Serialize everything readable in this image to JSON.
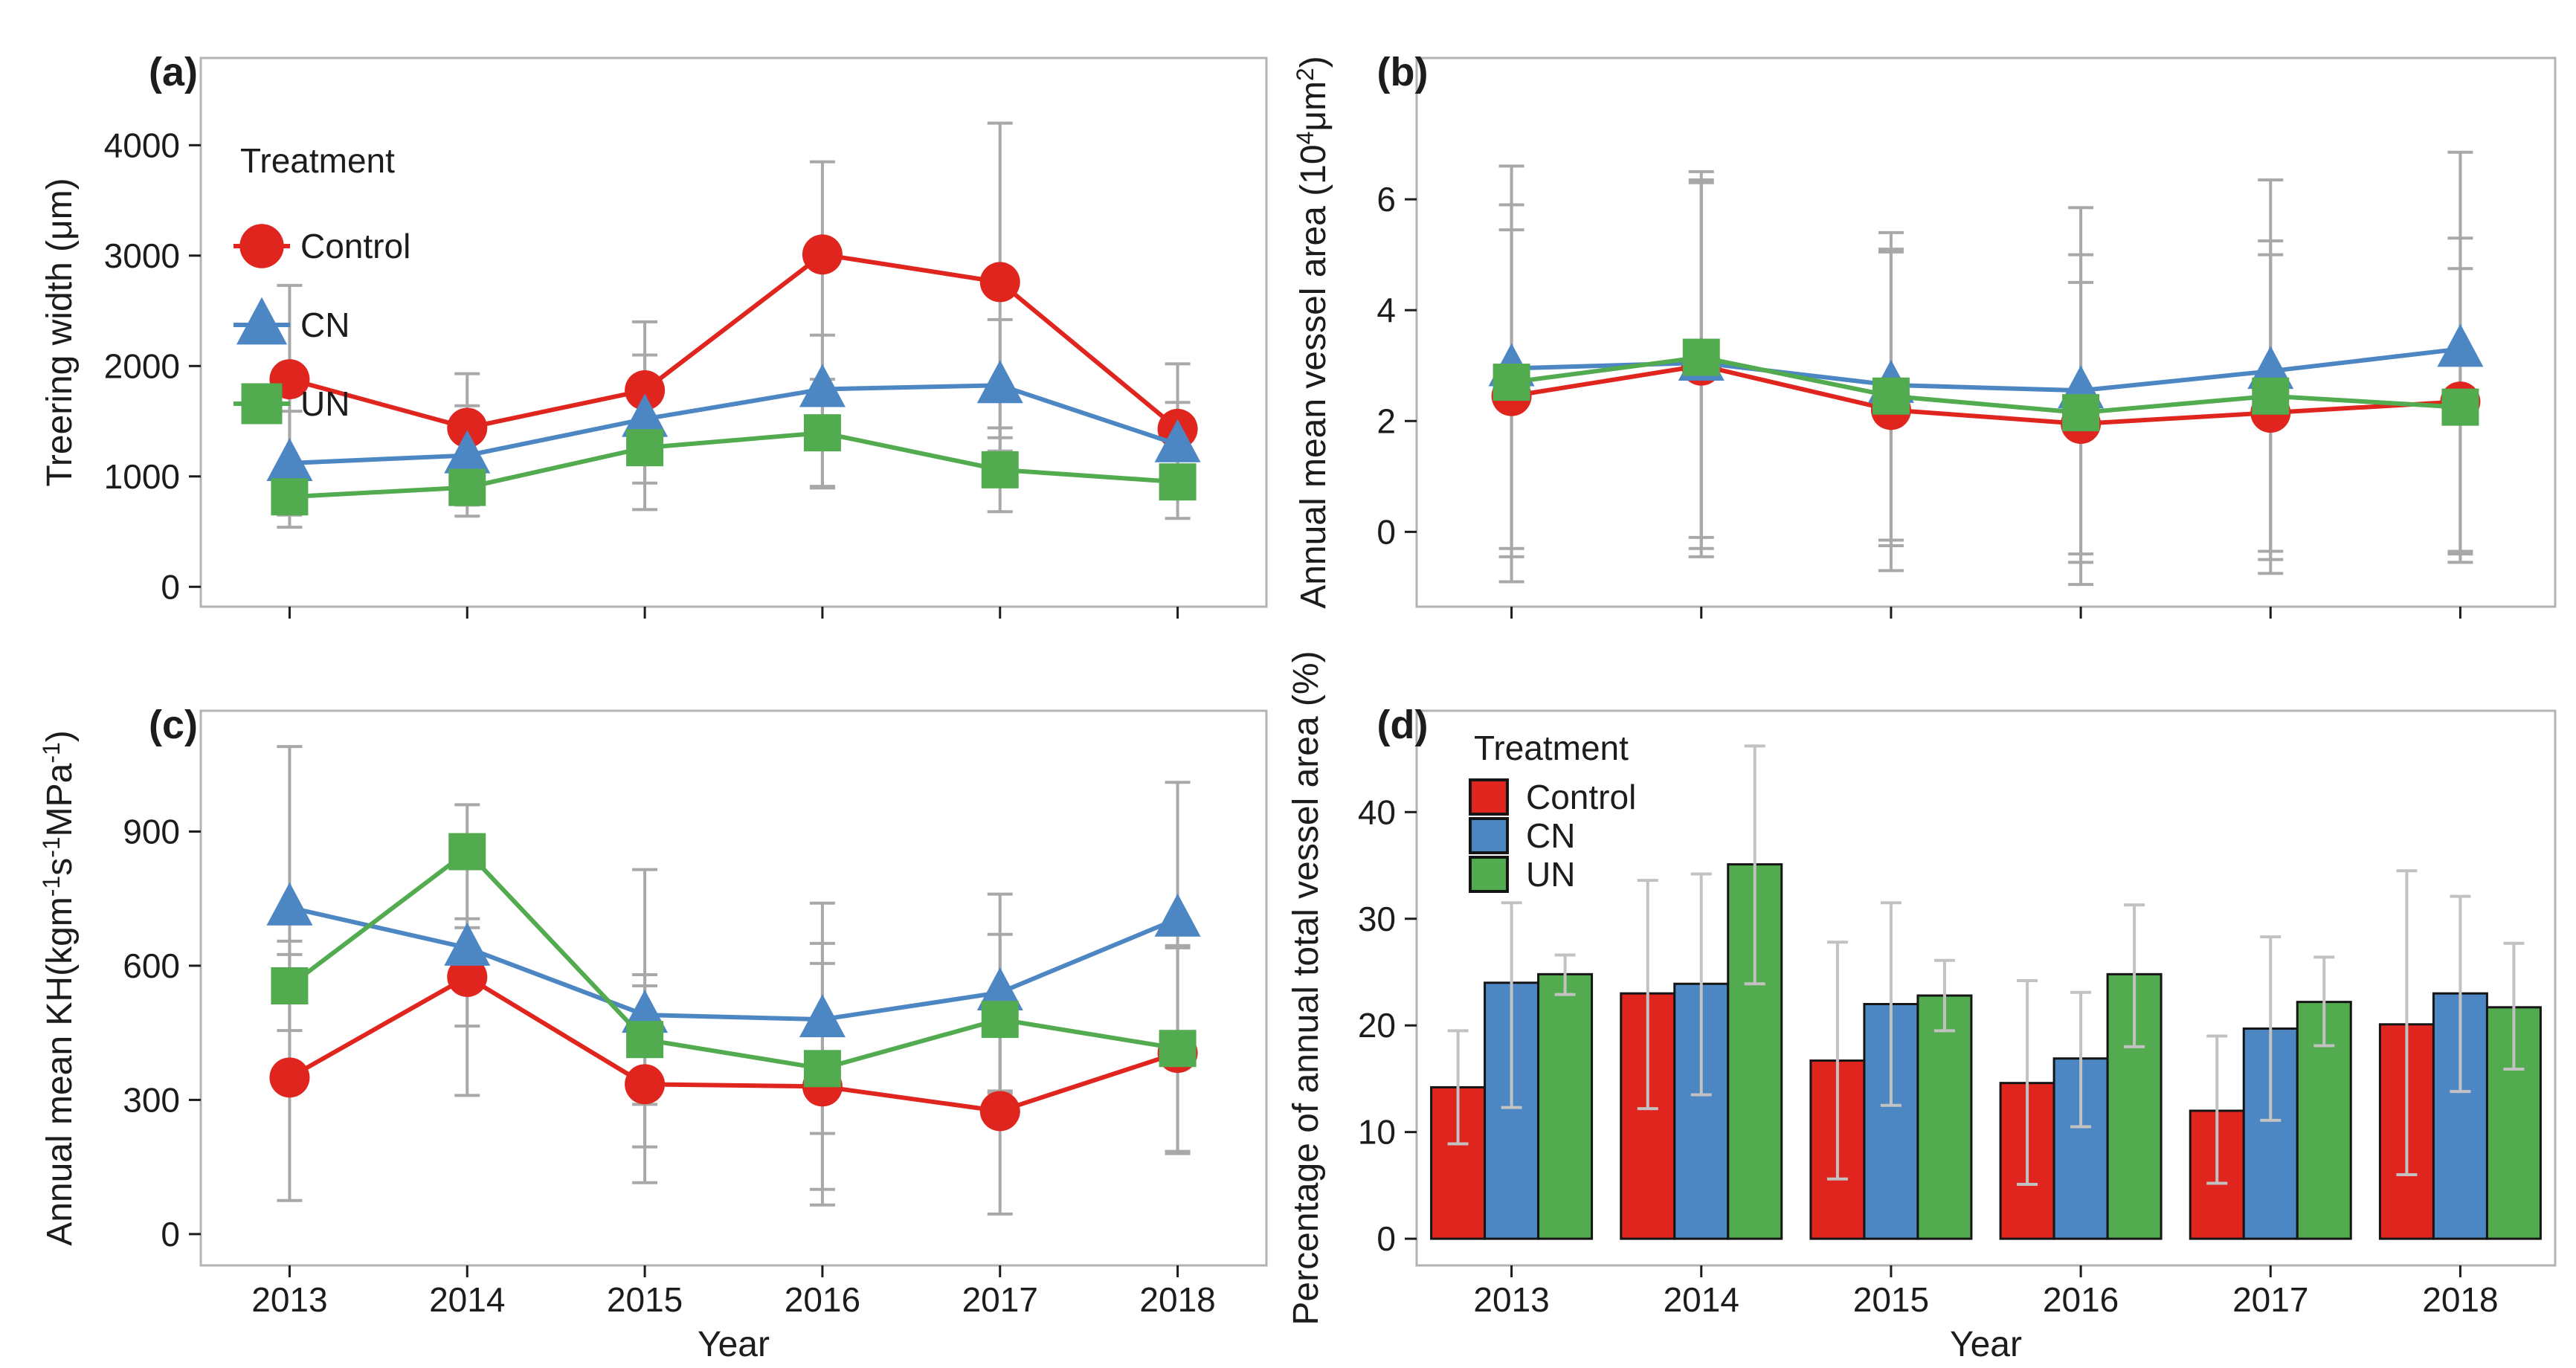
{
  "figure": {
    "colors": {
      "control": "#e0251f",
      "cn": "#4d87c3",
      "un": "#53ab50",
      "error_bar": "#a8a8a8",
      "error_bar_light": "#c2c2c2",
      "panel_border": "#b3b3b3",
      "tick": "#1c1c1c",
      "text": "#1c1c1c",
      "bar_outline": "#151515"
    },
    "legend_title": "Treatment",
    "series_labels": [
      "Control",
      "CN",
      "UN"
    ],
    "xlabel": "Year"
  },
  "chart_data": [
    {
      "type": "line",
      "tag": "(a)",
      "ylabel_segments": [
        {
          "t": "Treering width ("
        },
        {
          "t": "μ"
        },
        {
          "t": "m)"
        }
      ],
      "categories": [
        "2013",
        "2014",
        "2015",
        "2016",
        "2017",
        "2018"
      ],
      "show_x_tick_labels": false,
      "xlabel": "",
      "yticks": [
        0,
        1000,
        2000,
        3000,
        4000
      ],
      "ylim": [
        -180,
        4790
      ],
      "legend": {
        "title": "Treatment",
        "style": "marker"
      },
      "grid": false,
      "series": [
        {
          "name": "Control",
          "colorKey": "control",
          "marker": "circle",
          "values": [
            1880,
            1440,
            1780,
            3010,
            2760,
            1430
          ],
          "err_lo": [
            1030,
            950,
            1160,
            895,
            1350,
            850
          ],
          "err_hi": [
            2730,
            1930,
            2400,
            3850,
            4200,
            2020
          ]
        },
        {
          "name": "CN",
          "colorKey": "cn",
          "marker": "triangle",
          "values": [
            1120,
            1190,
            1520,
            1790,
            1825,
            1290
          ],
          "err_lo": [
            650,
            740,
            940,
            1300,
            1230,
            905
          ],
          "err_hi": [
            1590,
            1640,
            2100,
            2280,
            2420,
            1670
          ]
        },
        {
          "name": "UN",
          "colorKey": "un",
          "marker": "square",
          "values": [
            815,
            900,
            1260,
            1395,
            1060,
            950
          ],
          "err_lo": [
            540,
            640,
            700,
            910,
            680,
            620
          ],
          "err_hi": [
            1090,
            1160,
            1820,
            1880,
            1440,
            1280
          ]
        }
      ]
    },
    {
      "type": "line",
      "tag": "(b)",
      "ylabel_segments": [
        {
          "t": "Annual mean vessel area (10"
        },
        {
          "t": "4",
          "sup": true
        },
        {
          "t": "μm"
        },
        {
          "t": "2",
          "sup": true
        },
        {
          "t": ")"
        }
      ],
      "categories": [
        "2013",
        "2014",
        "2015",
        "2016",
        "2017",
        "2018"
      ],
      "show_x_tick_labels": false,
      "xlabel": "",
      "yticks": [
        0,
        2,
        4,
        6
      ],
      "ylim": [
        -1.35,
        8.55
      ],
      "legend": null,
      "grid": false,
      "series": [
        {
          "name": "Control",
          "colorKey": "control",
          "marker": "circle",
          "values": [
            2.45,
            3.0,
            2.2,
            1.95,
            2.15,
            2.35
          ],
          "err_lo": [
            -0.45,
            -0.3,
            -0.7,
            -0.55,
            -0.75,
            -0.4
          ],
          "err_hi": [
            5.45,
            6.35,
            5.05,
            4.5,
            5.0,
            5.3
          ]
        },
        {
          "name": "CN",
          "colorKey": "cn",
          "marker": "triangle",
          "values": [
            2.95,
            3.05,
            2.65,
            2.55,
            2.9,
            3.3
          ],
          "err_lo": [
            -0.9,
            -0.45,
            -0.15,
            -0.4,
            -0.5,
            -0.35
          ],
          "err_hi": [
            6.6,
            6.5,
            5.4,
            5.85,
            6.35,
            6.85
          ]
        },
        {
          "name": "UN",
          "colorKey": "un",
          "marker": "square",
          "values": [
            2.7,
            3.15,
            2.45,
            2.15,
            2.45,
            2.25
          ],
          "err_lo": [
            -0.3,
            -0.1,
            -0.25,
            -0.95,
            -0.35,
            -0.55
          ],
          "err_hi": [
            5.9,
            6.3,
            5.1,
            5.0,
            5.25,
            4.75
          ]
        }
      ]
    },
    {
      "type": "line",
      "tag": "(c)",
      "ylabel_segments": [
        {
          "t": "Annual mean KH(kgm"
        },
        {
          "t": "-1",
          "sup": true
        },
        {
          "t": "s"
        },
        {
          "t": "-1",
          "sup": true
        },
        {
          "t": "MPa"
        },
        {
          "t": "-1",
          "sup": true
        },
        {
          "t": ")"
        }
      ],
      "categories": [
        "2013",
        "2014",
        "2015",
        "2016",
        "2017",
        "2018"
      ],
      "show_x_tick_labels": true,
      "xlabel": "Year",
      "yticks": [
        0,
        300,
        600,
        900
      ],
      "ylim": [
        -70,
        1170
      ],
      "legend": null,
      "grid": false,
      "series": [
        {
          "name": "Control",
          "colorKey": "control",
          "marker": "circle",
          "values": [
            350,
            575,
            335,
            330,
            275,
            405
          ],
          "err_lo": [
            75,
            465,
            115,
            65,
            45,
            180
          ],
          "err_hi": [
            625,
            685,
            555,
            605,
            505,
            640
          ]
        },
        {
          "name": "CN",
          "colorKey": "cn",
          "marker": "triangle",
          "values": [
            730,
            640,
            490,
            480,
            540,
            705
          ],
          "err_lo": [
            370,
            575,
            195,
            225,
            320,
            400
          ],
          "err_hi": [
            1090,
            705,
            815,
            740,
            760,
            1010
          ]
        },
        {
          "name": "UN",
          "colorKey": "un",
          "marker": "square",
          "values": [
            555,
            855,
            435,
            370,
            480,
            415
          ],
          "err_lo": [
            455,
            310,
            290,
            100,
            315,
            185
          ],
          "err_hi": [
            655,
            960,
            580,
            650,
            670,
            645
          ]
        }
      ]
    },
    {
      "type": "bar",
      "tag": "(d)",
      "ylabel_segments": [
        {
          "t": "Percentage of annual total vessel area (%)"
        }
      ],
      "categories": [
        "2013",
        "2014",
        "2015",
        "2016",
        "2017",
        "2018"
      ],
      "show_x_tick_labels": true,
      "xlabel": "Year",
      "yticks": [
        0,
        10,
        20,
        30,
        40
      ],
      "ylim": [
        -2.5,
        49.5
      ],
      "legend": {
        "title": "Treatment",
        "style": "rect"
      },
      "grid": false,
      "series": [
        {
          "name": "Control",
          "colorKey": "control",
          "values": [
            14.2,
            23.0,
            16.7,
            14.6,
            12.0,
            20.1
          ],
          "err_lo": [
            8.9,
            12.2,
            5.6,
            5.1,
            5.2,
            6.0
          ],
          "err_hi": [
            19.5,
            33.6,
            27.8,
            24.2,
            19.0,
            34.5
          ]
        },
        {
          "name": "CN",
          "colorKey": "cn",
          "values": [
            24.0,
            23.9,
            22.0,
            16.9,
            19.7,
            23.0
          ],
          "err_lo": [
            12.3,
            13.5,
            12.5,
            10.5,
            11.1,
            13.8
          ],
          "err_hi": [
            31.5,
            34.2,
            31.5,
            23.1,
            28.3,
            32.1
          ]
        },
        {
          "name": "UN",
          "colorKey": "un",
          "values": [
            24.8,
            35.1,
            22.8,
            24.8,
            22.2,
            21.7
          ],
          "err_lo": [
            22.9,
            23.9,
            19.5,
            18.0,
            18.1,
            15.9
          ],
          "err_hi": [
            26.6,
            46.2,
            26.1,
            31.3,
            26.4,
            27.7
          ]
        }
      ]
    }
  ]
}
